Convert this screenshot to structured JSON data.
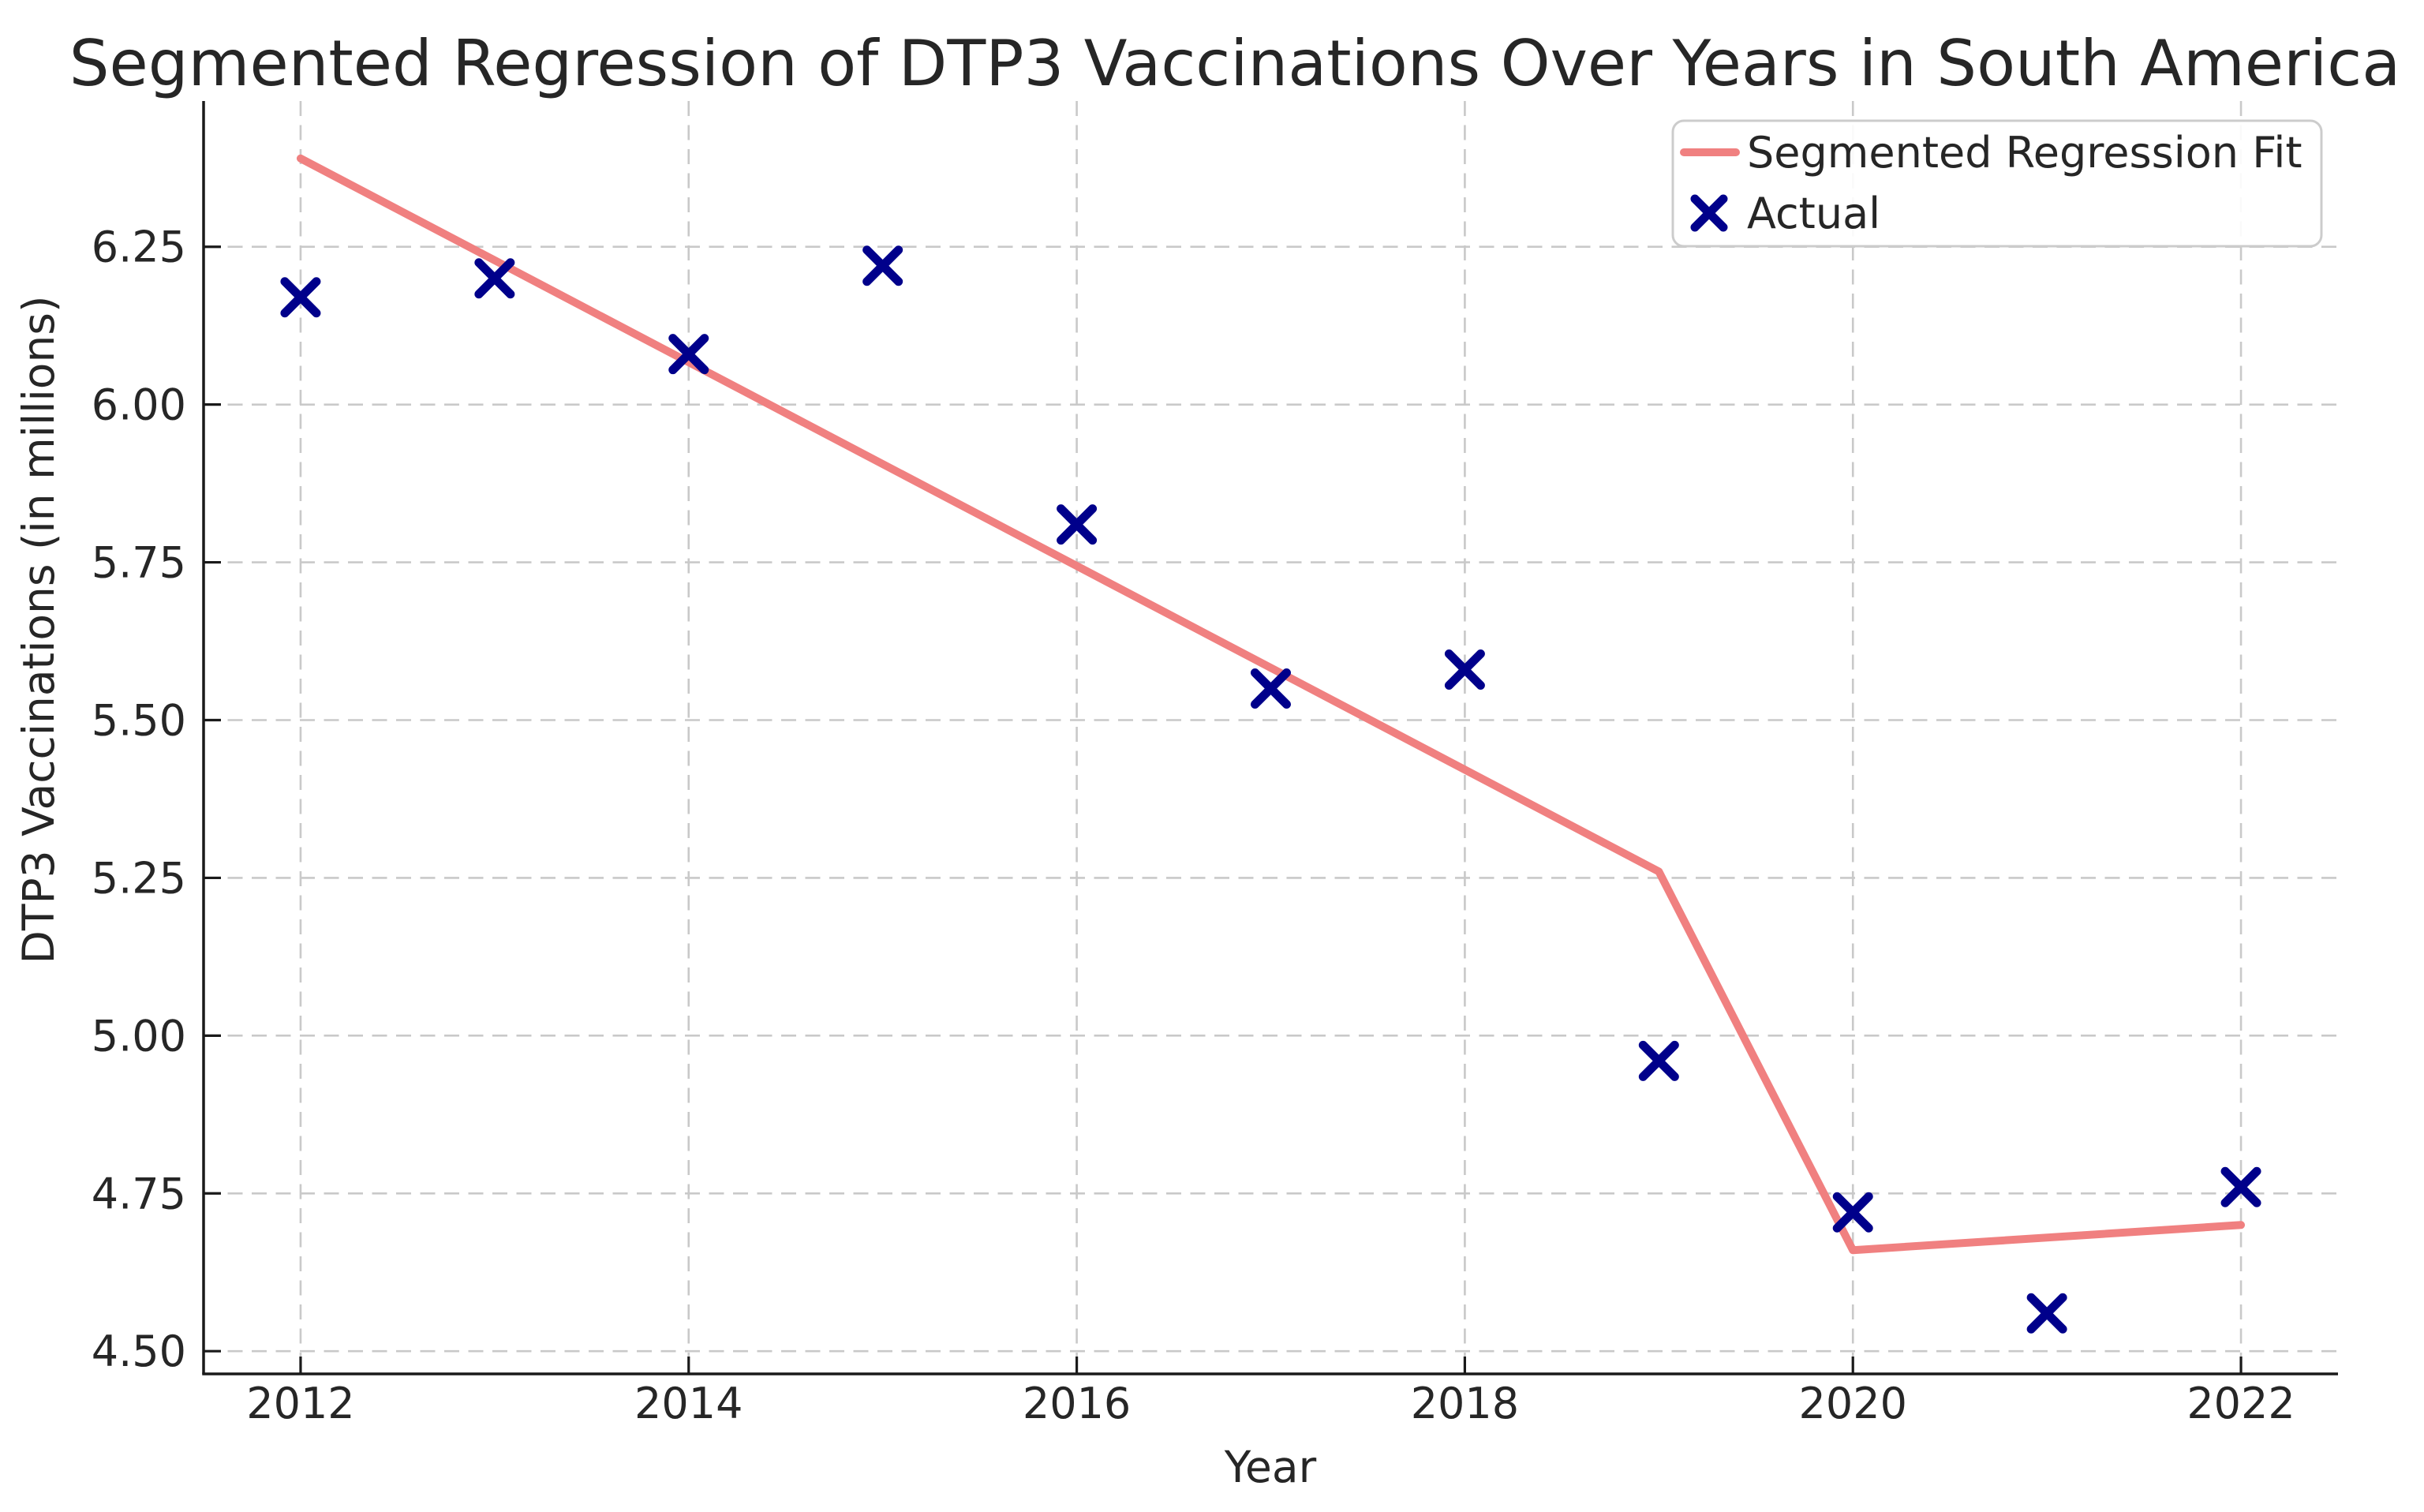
{
  "chart_data": {
    "type": "line+scatter",
    "title": "Segmented Regression of DTP3 Vaccinations Over Years in South America",
    "xlabel": "Year",
    "ylabel": "DTP3 Vaccinations (in millions)",
    "xlim": [
      2011.5,
      2022.5
    ],
    "ylim": [
      4.464,
      6.481
    ],
    "xticks": [
      2012,
      2014,
      2016,
      2018,
      2020,
      2022
    ],
    "yticks": [
      4.5,
      4.75,
      5.0,
      5.25,
      5.5,
      5.75,
      6.0,
      6.25
    ],
    "grid": true,
    "gridline_color": "#c9c9c9",
    "axis_color": "#1a1a1a",
    "legend_position": "upper right",
    "series": [
      {
        "name": "Segmented Regression Fit",
        "type": "line",
        "color": "#F08080",
        "x": [
          2012,
          2019,
          2020,
          2022
        ],
        "y": [
          6.39,
          5.26,
          4.66,
          4.7
        ]
      },
      {
        "name": "Actual",
        "type": "scatter",
        "marker": "x",
        "color": "#00008B",
        "x": [
          2012,
          2013,
          2014,
          2015,
          2016,
          2017,
          2018,
          2019,
          2020,
          2021,
          2022
        ],
        "y": [
          6.17,
          6.2,
          6.08,
          6.22,
          5.81,
          5.55,
          5.58,
          4.96,
          4.72,
          4.56,
          4.76
        ]
      }
    ]
  }
}
